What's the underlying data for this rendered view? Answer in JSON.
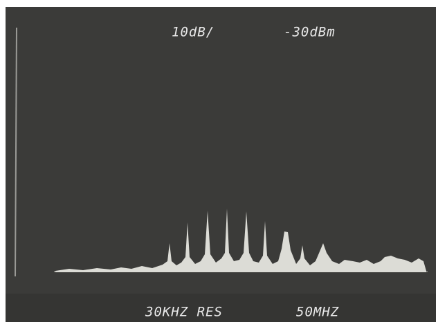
{
  "screen": {
    "scale": "10dB/",
    "reference_level": "-30dBm",
    "resolution": "30KHZ RES",
    "span": "50MHZ"
  }
}
